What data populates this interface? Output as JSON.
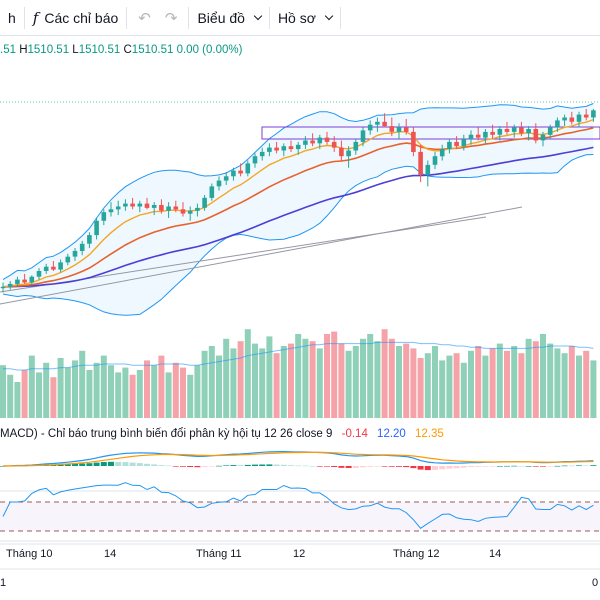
{
  "toolbar": {
    "interval_label": "h",
    "indicators_label": "Các chỉ báo",
    "chart_type_label": "Biểu đồ",
    "profile_label": "Hồ sơ"
  },
  "ohlc": {
    "open_tail": ".51",
    "high_key": "H",
    "high": "1510.51",
    "low_key": "L",
    "low": "1510.51",
    "close_key": "C",
    "close": "1510.51",
    "change": "0.00 (0.00%)"
  },
  "macd_legend": {
    "title": "MACD) - Chỉ báo trung bình biến đổi phân kỳ hội tụ 12 26 close 9",
    "hist": "-0.14",
    "macd": "12.20",
    "signal": "12.35"
  },
  "time_axis": [
    "Tháng 10",
    "14",
    "Tháng 11",
    "12",
    "Tháng 12",
    "14"
  ],
  "corner_labels": {
    "left": "1",
    "right": "0"
  },
  "colors": {
    "up": "#26a69a",
    "down": "#ef5350",
    "bollinger": "#2196f3",
    "ma_fast": "#f5a623",
    "ma_mid": "#e8622b",
    "ma_slow": "#4b3fd6",
    "rsi": "#2196f3"
  },
  "chart_data": {
    "type": "candlestick",
    "candles": [
      [
        1262,
        1270,
        1256,
        1264
      ],
      [
        1264,
        1272,
        1260,
        1268
      ],
      [
        1268,
        1278,
        1265,
        1274
      ],
      [
        1274,
        1282,
        1268,
        1270
      ],
      [
        1270,
        1280,
        1266,
        1278
      ],
      [
        1278,
        1290,
        1274,
        1286
      ],
      [
        1286,
        1296,
        1282,
        1292
      ],
      [
        1292,
        1300,
        1286,
        1288
      ],
      [
        1288,
        1302,
        1284,
        1298
      ],
      [
        1298,
        1310,
        1294,
        1306
      ],
      [
        1306,
        1318,
        1300,
        1314
      ],
      [
        1314,
        1328,
        1308,
        1324
      ],
      [
        1324,
        1340,
        1318,
        1336
      ],
      [
        1336,
        1360,
        1330,
        1356
      ],
      [
        1356,
        1372,
        1350,
        1368
      ],
      [
        1368,
        1382,
        1362,
        1372
      ],
      [
        1372,
        1384,
        1364,
        1376
      ],
      [
        1376,
        1386,
        1370,
        1380
      ],
      [
        1380,
        1388,
        1372,
        1376
      ],
      [
        1376,
        1384,
        1368,
        1380
      ],
      [
        1380,
        1388,
        1372,
        1374
      ],
      [
        1374,
        1382,
        1364,
        1378
      ],
      [
        1378,
        1386,
        1366,
        1370
      ],
      [
        1370,
        1382,
        1360,
        1376
      ],
      [
        1376,
        1384,
        1368,
        1372
      ],
      [
        1372,
        1382,
        1362,
        1366
      ],
      [
        1366,
        1376,
        1356,
        1370
      ],
      [
        1370,
        1380,
        1362,
        1374
      ],
      [
        1374,
        1392,
        1370,
        1388
      ],
      [
        1388,
        1408,
        1384,
        1404
      ],
      [
        1404,
        1418,
        1398,
        1412
      ],
      [
        1412,
        1424,
        1406,
        1418
      ],
      [
        1418,
        1430,
        1412,
        1426
      ],
      [
        1426,
        1436,
        1418,
        1422
      ],
      [
        1422,
        1440,
        1418,
        1436
      ],
      [
        1436,
        1450,
        1430,
        1446
      ],
      [
        1446,
        1458,
        1440,
        1452
      ],
      [
        1452,
        1464,
        1446,
        1458
      ],
      [
        1458,
        1466,
        1450,
        1454
      ],
      [
        1454,
        1464,
        1446,
        1460
      ],
      [
        1460,
        1468,
        1452,
        1456
      ],
      [
        1456,
        1466,
        1448,
        1462
      ],
      [
        1462,
        1474,
        1456,
        1468
      ],
      [
        1468,
        1478,
        1460,
        1464
      ],
      [
        1464,
        1476,
        1456,
        1472
      ],
      [
        1472,
        1480,
        1462,
        1466
      ],
      [
        1466,
        1474,
        1452,
        1458
      ],
      [
        1458,
        1468,
        1440,
        1446
      ],
      [
        1446,
        1460,
        1430,
        1454
      ],
      [
        1454,
        1470,
        1448,
        1466
      ],
      [
        1466,
        1486,
        1460,
        1482
      ],
      [
        1482,
        1496,
        1476,
        1490
      ],
      [
        1490,
        1500,
        1480,
        1494
      ],
      [
        1494,
        1506,
        1486,
        1488
      ],
      [
        1488,
        1500,
        1474,
        1480
      ],
      [
        1480,
        1492,
        1470,
        1486
      ],
      [
        1486,
        1498,
        1476,
        1480
      ],
      [
        1480,
        1486,
        1446,
        1452
      ],
      [
        1452,
        1462,
        1410,
        1420
      ],
      [
        1420,
        1440,
        1404,
        1434
      ],
      [
        1434,
        1452,
        1428,
        1446
      ],
      [
        1446,
        1462,
        1440,
        1456
      ],
      [
        1456,
        1470,
        1450,
        1466
      ],
      [
        1466,
        1474,
        1456,
        1460
      ],
      [
        1460,
        1476,
        1454,
        1470
      ],
      [
        1470,
        1482,
        1462,
        1476
      ],
      [
        1476,
        1486,
        1468,
        1472
      ],
      [
        1472,
        1484,
        1464,
        1480
      ],
      [
        1480,
        1490,
        1470,
        1476
      ],
      [
        1476,
        1488,
        1468,
        1484
      ],
      [
        1484,
        1494,
        1476,
        1480
      ],
      [
        1480,
        1490,
        1472,
        1486
      ],
      [
        1486,
        1494,
        1474,
        1478
      ],
      [
        1478,
        1488,
        1468,
        1484
      ],
      [
        1484,
        1492,
        1464,
        1468
      ],
      [
        1468,
        1480,
        1460,
        1476
      ],
      [
        1476,
        1490,
        1470,
        1486
      ],
      [
        1486,
        1500,
        1480,
        1496
      ],
      [
        1496,
        1504,
        1488,
        1500
      ],
      [
        1500,
        1508,
        1490,
        1494
      ],
      [
        1494,
        1508,
        1486,
        1504
      ],
      [
        1504,
        1512,
        1496,
        1500
      ],
      [
        1500,
        1512,
        1494,
        1510
      ]
    ],
    "volume": [
      44,
      36,
      30,
      40,
      52,
      38,
      46,
      34,
      50,
      42,
      48,
      56,
      40,
      46,
      52,
      44,
      38,
      42,
      36,
      40,
      48,
      44,
      52,
      38,
      46,
      42,
      36,
      44,
      56,
      60,
      52,
      66,
      58,
      64,
      74,
      62,
      58,
      68,
      54,
      60,
      62,
      70,
      66,
      64,
      58,
      70,
      72,
      62,
      56,
      60,
      66,
      70,
      64,
      74,
      66,
      60,
      62,
      58,
      50,
      54,
      60,
      48,
      52,
      54,
      46,
      56,
      60,
      52,
      58,
      62,
      56,
      60,
      54,
      66,
      64,
      70,
      62,
      58,
      54,
      60,
      52,
      56,
      48
    ],
    "volume_ma": [
      41,
      41,
      40,
      40,
      41,
      41,
      41,
      41,
      42,
      42,
      43,
      44,
      44,
      44,
      45,
      45,
      45,
      45,
      44,
      44,
      44,
      44,
      45,
      45,
      45,
      45,
      44,
      44,
      45,
      46,
      47,
      48,
      49,
      50,
      52,
      53,
      54,
      55,
      56,
      57,
      58,
      59,
      60,
      61,
      61,
      62,
      62,
      62,
      62,
      62,
      62,
      62,
      63,
      63,
      63,
      63,
      63,
      63,
      62,
      62,
      62,
      61,
      61,
      60,
      60,
      59,
      59,
      58,
      58,
      58,
      58,
      58,
      58,
      58,
      59,
      59,
      60,
      60,
      60,
      60,
      59,
      59,
      58
    ]
  }
}
